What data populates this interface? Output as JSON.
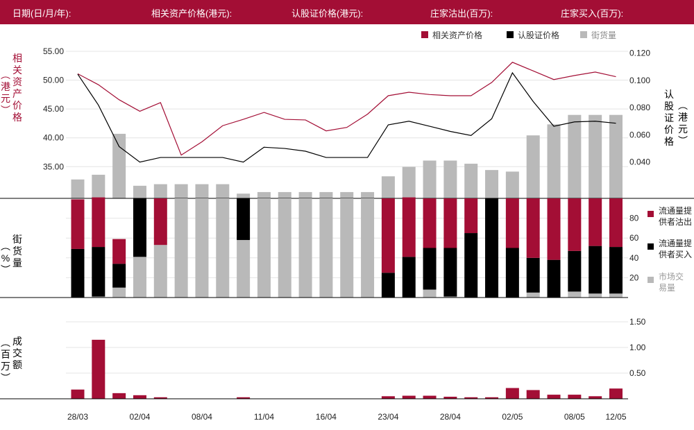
{
  "header": {
    "date_label": "日期(日/月/年):",
    "underlying_label": "相关资产价格(港元):",
    "warrant_label": "认股证价格(港元):",
    "dealer_sell_label": "庄家沽出(百万):",
    "dealer_buy_label": "庄家买入(百万):"
  },
  "colors": {
    "header_bg": "#a30e35",
    "red": "#a30e35",
    "black": "#000000",
    "gray": "#b9b9b9"
  },
  "chart_data": [
    {
      "type": "line",
      "legend_position": "top-right",
      "legend": [
        "相关资产价格",
        "认股证价格",
        "街货量"
      ],
      "left_axis_label": "相关资产价格（港元）",
      "right_axis_label": "认股证价格（港元）",
      "left_ticks": [
        "55.00",
        "50.00",
        "45.00",
        "40.00",
        "35.00"
      ],
      "right_ticks": [
        "0.120",
        "0.100",
        "0.080",
        "0.060",
        "0.040"
      ],
      "left_range": [
        29.5,
        56.8
      ],
      "right_range": [
        0.0134,
        0.1289
      ],
      "x_ticks": [
        "28/03",
        "02/04",
        "08/04",
        "11/04",
        "16/04",
        "23/04",
        "28/04",
        "02/05",
        "08/05",
        "12/05"
      ],
      "series": [
        {
          "name": "相关资产价格",
          "axis": "left",
          "values": [
            51.1,
            49.2,
            46.6,
            44.6,
            46.1,
            37.0,
            39.3,
            42.1,
            43.2,
            44.4,
            43.2,
            43.1,
            41.2,
            41.8,
            44.1,
            47.3,
            47.9,
            47.5,
            47.3,
            47.3,
            49.6,
            53.1,
            51.6,
            50.1,
            50.8,
            51.4,
            50.6
          ]
        },
        {
          "name": "认股证价格",
          "axis": "right",
          "values": [
            0.1045,
            0.0818,
            0.0514,
            0.04,
            0.0434,
            0.0434,
            0.0434,
            0.0434,
            0.04,
            0.0509,
            0.05,
            0.048,
            0.0434,
            0.0434,
            0.0434,
            0.0673,
            0.07,
            0.0663,
            0.0625,
            0.0595,
            0.0718,
            0.1055,
            0.0845,
            0.0663,
            0.0695,
            0.07,
            0.0685
          ]
        }
      ]
    },
    {
      "type": "bar",
      "legend_position": "top-right",
      "series_name": "街货量",
      "ylabel": "街货量（%）",
      "yticks": [
        "80",
        "60",
        "40",
        "20"
      ],
      "ylim": [
        0,
        100
      ],
      "values": [
        12,
        15,
        41,
        8,
        9,
        9,
        9,
        9,
        3,
        4,
        4,
        4,
        4,
        4,
        4,
        14,
        20,
        24,
        24,
        22,
        18,
        17,
        40,
        47,
        53,
        53,
        53
      ]
    },
    {
      "type": "bar",
      "stacked": true,
      "legend_position": "right",
      "ylabel": "%",
      "yticks": [
        "80",
        "60",
        "40",
        "20"
      ],
      "ylim": [
        0,
        100
      ],
      "series": [
        {
          "name": "流通量提供者沽出",
          "values": [
            50,
            50,
            25,
            0,
            47,
            0,
            0,
            0,
            0,
            0,
            0,
            0,
            0,
            0,
            0,
            75,
            60,
            50,
            50,
            35,
            0,
            50,
            60,
            62,
            53,
            48,
            49
          ]
        },
        {
          "name": "流通量提供者买入",
          "values": [
            49,
            50,
            24,
            59,
            0,
            0,
            0,
            0,
            42,
            0,
            0,
            0,
            0,
            0,
            0,
            25,
            41,
            42,
            49,
            65,
            100,
            50,
            35,
            38,
            41,
            48,
            47
          ]
        },
        {
          "name": "市场交易量",
          "values": [
            0,
            1,
            10,
            41,
            53,
            100,
            100,
            100,
            58,
            100,
            100,
            100,
            100,
            100,
            100,
            0,
            0,
            8,
            1,
            0,
            0,
            0,
            5,
            0,
            6,
            4,
            4
          ]
        }
      ]
    },
    {
      "type": "bar",
      "ylabel": "成交额（百万）",
      "yticks": [
        "1.50",
        "1.00",
        "0.50"
      ],
      "ylim": [
        0,
        1.5
      ],
      "values": [
        0.18,
        1.15,
        0.11,
        0.07,
        0.03,
        0.0,
        0.0,
        0.0,
        0.03,
        0.0,
        0.0,
        0.0,
        0.0,
        0.0,
        0.0,
        0.05,
        0.06,
        0.06,
        0.04,
        0.03,
        0.03,
        0.21,
        0.17,
        0.08,
        0.08,
        0.05,
        0.2
      ]
    }
  ]
}
